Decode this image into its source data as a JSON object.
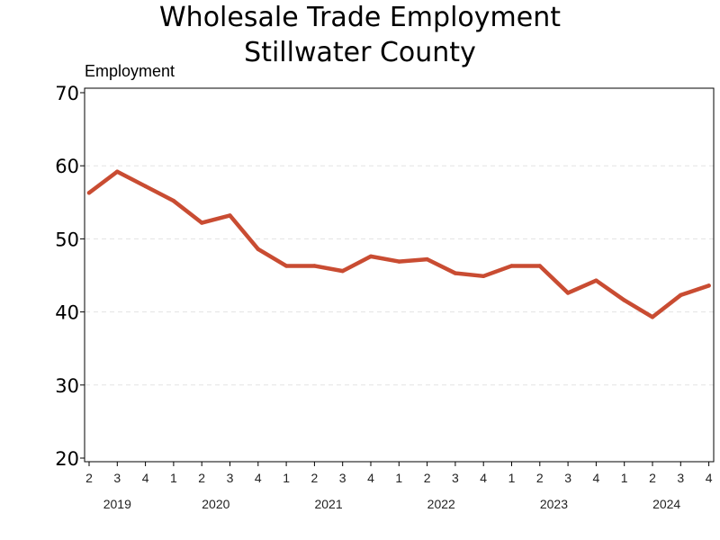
{
  "chart_data": {
    "type": "line",
    "title": [
      "Wholesale Trade Employment",
      "Stillwater County"
    ],
    "ylabel": "Employment",
    "xlabel": "",
    "ylim": [
      20,
      70
    ],
    "yticks": [
      20,
      30,
      40,
      50,
      60,
      70
    ],
    "grid": "horizontal dashed",
    "x_quarters": [
      "2",
      "3",
      "4",
      "1",
      "2",
      "3",
      "4",
      "1",
      "2",
      "3",
      "4",
      "1",
      "2",
      "3",
      "4",
      "1",
      "2",
      "3",
      "4",
      "1",
      "2",
      "3",
      "4"
    ],
    "x_years": [
      "2019",
      "2019",
      "2019",
      "2020",
      "2020",
      "2020",
      "2020",
      "2021",
      "2021",
      "2021",
      "2021",
      "2022",
      "2022",
      "2022",
      "2022",
      "2023",
      "2023",
      "2023",
      "2023",
      "2024",
      "2024",
      "2024",
      "2024"
    ],
    "year_labels": [
      "2019",
      "2020",
      "2021",
      "2022",
      "2023",
      "2024"
    ],
    "series": [
      {
        "color": "#c94c32",
        "values": [
          56.3,
          59.2,
          57.2,
          55.2,
          52.2,
          53.2,
          48.6,
          46.3,
          46.3,
          45.6,
          47.6,
          46.9,
          47.2,
          45.3,
          44.9,
          46.3,
          46.3,
          42.6,
          44.3,
          41.6,
          39.3,
          42.3,
          43.6
        ]
      }
    ]
  }
}
